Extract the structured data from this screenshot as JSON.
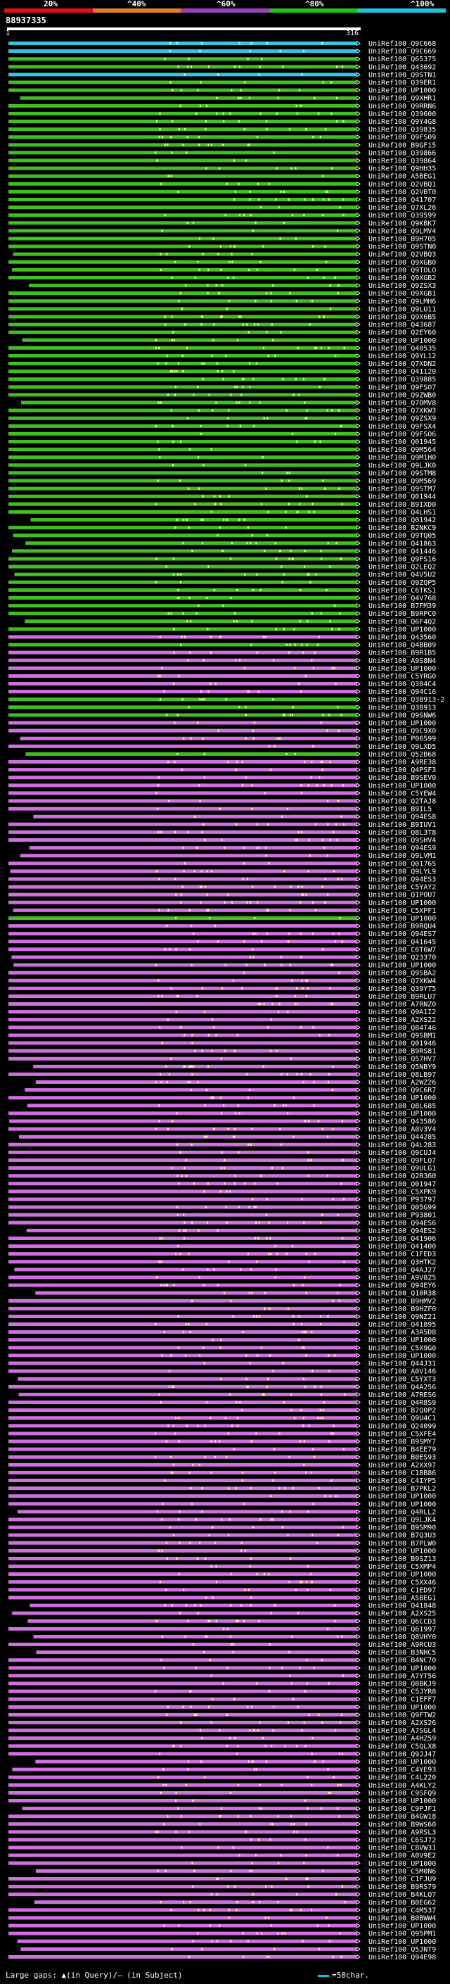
{
  "legend": {
    "ticks": [
      "20%",
      "^40%",
      "^60%",
      "^80%",
      "^100%"
    ],
    "colors": [
      "#e01010",
      "#e08020",
      "#a040c0",
      "#20c020",
      "#20c0e0"
    ]
  },
  "query_id": "88937335",
  "range": {
    "start": "1",
    "end": "316"
  },
  "footer": {
    "text": "Large gaps: ▲(in Query)/– (in Subject)",
    "scale_label": "=50char."
  },
  "colors": {
    "background": "#000000",
    "hit_magenta": "#d070e0",
    "hit_green": "#40c020",
    "hit_cyan": "#30c8e0",
    "gap_mark": "#ffffa0",
    "arrow": "#ffffff"
  },
  "hits": [
    {
      "label": "UniRef100_Q9C668",
      "pid": "cyan"
    },
    {
      "label": "UniRef100_Q9C669",
      "pid": "cyan"
    },
    {
      "label": "UniRef100_Q65375",
      "pid": "green"
    },
    {
      "label": "UniRef100_Q43692",
      "pid": "green"
    },
    {
      "label": "UniRef100_Q9STN1",
      "pid": "cyan"
    },
    {
      "label": "UniRef100_Q39ER1",
      "pid": "green"
    },
    {
      "label": "UniRef100_UP1000",
      "pid": "green"
    },
    {
      "label": "UniRef100_Q9XHR1",
      "pid": "green"
    },
    {
      "label": "UniRef100_Q9RRN6",
      "pid": "green"
    },
    {
      "label": "UniRef100_Q39600",
      "pid": "green"
    },
    {
      "label": "UniRef100_Q9Y4G8",
      "pid": "green"
    },
    {
      "label": "UniRef100_Q39835",
      "pid": "green"
    },
    {
      "label": "UniRef100_Q9FS09",
      "pid": "green"
    },
    {
      "label": "UniRef100_B9GF15",
      "pid": "green"
    },
    {
      "label": "UniRef100_Q39866",
      "pid": "green"
    },
    {
      "label": "UniRef100_Q39864",
      "pid": "green"
    },
    {
      "label": "UniRef100_Q9HH35",
      "pid": "green"
    },
    {
      "label": "UniRef100_A5BEG1",
      "pid": "green"
    },
    {
      "label": "UniRef100_Q2VBQ1",
      "pid": "green"
    },
    {
      "label": "UniRef100_Q2VBT0",
      "pid": "green"
    },
    {
      "label": "UniRef100_Q41707",
      "pid": "green"
    },
    {
      "label": "UniRef100_Q7XL26",
      "pid": "green"
    },
    {
      "label": "UniRef100_Q39599",
      "pid": "green"
    },
    {
      "label": "UniRef100_Q9KBK7",
      "pid": "green"
    },
    {
      "label": "UniRef100_Q9LMV4",
      "pid": "green"
    },
    {
      "label": "UniRef100_B9H705",
      "pid": "green"
    },
    {
      "label": "UniRef100_Q9STN0",
      "pid": "green"
    },
    {
      "label": "UniRef100_Q2VBQ3",
      "pid": "green"
    },
    {
      "label": "UniRef100_Q9XGB0",
      "pid": "green"
    },
    {
      "label": "UniRef100_Q9TOLO",
      "pid": "green"
    },
    {
      "label": "UniRef100_Q9XGB2",
      "pid": "green"
    },
    {
      "label": "UniRef100_Q9ZSX3",
      "pid": "green"
    },
    {
      "label": "UniRef100_Q9XGB1",
      "pid": "green"
    },
    {
      "label": "UniRef100_Q9LMH6",
      "pid": "green"
    },
    {
      "label": "UniRef100_Q9LU11",
      "pid": "green"
    },
    {
      "label": "UniRef100_Q9X6B5",
      "pid": "green"
    },
    {
      "label": "UniRef100_Q43687",
      "pid": "green"
    },
    {
      "label": "UniRef100_Q2EY60",
      "pid": "green"
    },
    {
      "label": "UniRef100_UP1000",
      "pid": "green"
    },
    {
      "label": "UniRef100_Q40535",
      "pid": "green"
    },
    {
      "label": "UniRef100_Q9YL12",
      "pid": "green"
    },
    {
      "label": "UniRef100_Q7XDN2",
      "pid": "green"
    },
    {
      "label": "UniRef100_Q41120",
      "pid": "green"
    },
    {
      "label": "UniRef100_Q39885",
      "pid": "green"
    },
    {
      "label": "UniRef100_Q9FSO7",
      "pid": "green"
    },
    {
      "label": "UniRef100_Q9ZWB0",
      "pid": "green"
    },
    {
      "label": "UniRef100_Q7DMV8",
      "pid": "green"
    },
    {
      "label": "UniRef100_Q7XKW3",
      "pid": "green"
    },
    {
      "label": "UniRef100_Q9ZSX9",
      "pid": "green"
    },
    {
      "label": "UniRef100_Q9FSX4",
      "pid": "green"
    },
    {
      "label": "UniRef100_Q9FSO6",
      "pid": "green"
    },
    {
      "label": "UniRef100_Q01945",
      "pid": "green"
    },
    {
      "label": "UniRef100_Q9M564",
      "pid": "green"
    },
    {
      "label": "UniRef100_Q9M1H0",
      "pid": "green"
    },
    {
      "label": "UniRef100_Q9LJK0",
      "pid": "green"
    },
    {
      "label": "UniRef100_Q9STM8",
      "pid": "green"
    },
    {
      "label": "UniRef100_Q9M569",
      "pid": "green"
    },
    {
      "label": "UniRef100_Q9STM7",
      "pid": "green"
    },
    {
      "label": "UniRef100_Q01944",
      "pid": "green"
    },
    {
      "label": "UniRef100_B9IXD0",
      "pid": "green"
    },
    {
      "label": "UniRef100_Q4LHS1",
      "pid": "green"
    },
    {
      "label": "UniRef100_Q01942",
      "pid": "green"
    },
    {
      "label": "UniRef100_B2NKC9",
      "pid": "green"
    },
    {
      "label": "UniRef100_Q9TQ05",
      "pid": "green"
    },
    {
      "label": "UniRef100_Q41863",
      "pid": "green"
    },
    {
      "label": "UniRef100_Q41446",
      "pid": "green"
    },
    {
      "label": "UniRef100_Q9FS16",
      "pid": "green"
    },
    {
      "label": "UniRef100_Q2LEQ2",
      "pid": "green"
    },
    {
      "label": "UniRef100_Q4V5U2",
      "pid": "green"
    },
    {
      "label": "UniRef100_Q9ZQP5",
      "pid": "green"
    },
    {
      "label": "UniRef100_C6TKS1",
      "pid": "green"
    },
    {
      "label": "UniRef100_Q4V768",
      "pid": "green"
    },
    {
      "label": "UniRef100_B7FM39",
      "pid": "green"
    },
    {
      "label": "UniRef100_B9RPC0",
      "pid": "green"
    },
    {
      "label": "UniRef100_Q6F4Q2",
      "pid": "green"
    },
    {
      "label": "UniRef100_UP1000",
      "pid": "green"
    },
    {
      "label": "UniRef100_Q43560",
      "pid": "magenta"
    },
    {
      "label": "UniRef100_Q4BB09",
      "pid": "green"
    },
    {
      "label": "UniRef100_B9R1B5",
      "pid": "magenta"
    },
    {
      "label": "UniRef100_A9S8N4",
      "pid": "magenta"
    },
    {
      "label": "UniRef100_UP1000",
      "pid": "magenta"
    },
    {
      "label": "UniRef100_C5YRG0",
      "pid": "magenta"
    },
    {
      "label": "UniRef100_Q304C4",
      "pid": "magenta"
    },
    {
      "label": "UniRef100_Q94C16",
      "pid": "magenta"
    },
    {
      "label": "UniRef100_Q38913-2",
      "pid": "green"
    },
    {
      "label": "UniRef100_Q38913",
      "pid": "green"
    },
    {
      "label": "UniRef100_Q9SNW6",
      "pid": "green"
    },
    {
      "label": "UniRef100_UP1000",
      "pid": "magenta"
    },
    {
      "label": "UniRef100_Q9C9X0",
      "pid": "magenta"
    },
    {
      "label": "UniRef100_P06599",
      "pid": "magenta"
    },
    {
      "label": "UniRef100_Q9LXD5",
      "pid": "magenta"
    },
    {
      "label": "UniRef100_Q52B68",
      "pid": "green"
    },
    {
      "label": "UniRef100_A9RE38",
      "pid": "magenta"
    },
    {
      "label": "UniRef100_Q4PSF3",
      "pid": "magenta"
    },
    {
      "label": "UniRef100_B9SEV0",
      "pid": "magenta"
    },
    {
      "label": "UniRef100_UP1000",
      "pid": "magenta"
    },
    {
      "label": "UniRef100_C5YEW4",
      "pid": "magenta"
    },
    {
      "label": "UniRef100_Q2TAJ8",
      "pid": "magenta"
    },
    {
      "label": "UniRef100_B9IL5",
      "pid": "magenta"
    },
    {
      "label": "UniRef100_Q94ES8",
      "pid": "magenta"
    },
    {
      "label": "UniRef100_B9IUV1",
      "pid": "magenta"
    },
    {
      "label": "UniRef100_Q8L3T8",
      "pid": "magenta"
    },
    {
      "label": "UniRef100_Q9SHV4",
      "pid": "magenta"
    },
    {
      "label": "UniRef100_Q94ES9",
      "pid": "magenta"
    },
    {
      "label": "UniRef100_Q9LVM1",
      "pid": "magenta"
    },
    {
      "label": "UniRef100_Q01765",
      "pid": "magenta"
    },
    {
      "label": "UniRef100_Q9LYL9",
      "pid": "magenta"
    },
    {
      "label": "UniRef100_Q94ES3",
      "pid": "magenta"
    },
    {
      "label": "UniRef100_C5YAY2",
      "pid": "magenta"
    },
    {
      "label": "UniRef100_Q1POU7",
      "pid": "magenta"
    },
    {
      "label": "UniRef100_UP1000",
      "pid": "magenta"
    },
    {
      "label": "UniRef100_C5XPF1",
      "pid": "magenta"
    },
    {
      "label": "UniRef100_UP1000",
      "pid": "green"
    },
    {
      "label": "UniRef100_B9RQU4",
      "pid": "magenta"
    },
    {
      "label": "UniRef100_Q94ES7",
      "pid": "magenta"
    },
    {
      "label": "UniRef100_Q41645",
      "pid": "magenta"
    },
    {
      "label": "UniRef100_C6T6W7",
      "pid": "magenta"
    },
    {
      "label": "UniRef100_Q23370",
      "pid": "magenta"
    },
    {
      "label": "UniRef100_UP1000",
      "pid": "magenta"
    },
    {
      "label": "UniRef100_Q9SBA2",
      "pid": "magenta"
    },
    {
      "label": "UniRef100_Q7XKW4",
      "pid": "magenta"
    },
    {
      "label": "UniRef100_Q39YT5",
      "pid": "magenta"
    },
    {
      "label": "UniRef100_B9RLU7",
      "pid": "magenta"
    },
    {
      "label": "UniRef100_A7RNZ0",
      "pid": "magenta"
    },
    {
      "label": "UniRef100_Q9A1I2",
      "pid": "magenta"
    },
    {
      "label": "UniRef100_A2XS22",
      "pid": "magenta"
    },
    {
      "label": "UniRef100_Q84T46",
      "pid": "magenta"
    },
    {
      "label": "UniRef100_Q9SBM1",
      "pid": "magenta"
    },
    {
      "label": "UniRef100_Q01946",
      "pid": "magenta"
    },
    {
      "label": "UniRef100_B9RS81",
      "pid": "magenta"
    },
    {
      "label": "UniRef100_Q57HV7",
      "pid": "magenta"
    },
    {
      "label": "UniRef100_Q5NBY9",
      "pid": "magenta"
    },
    {
      "label": "UniRef100_Q8LB97",
      "pid": "magenta"
    },
    {
      "label": "UniRef100_A2WZ26",
      "pid": "magenta"
    },
    {
      "label": "UniRef100_Q9C6R7",
      "pid": "magenta"
    },
    {
      "label": "UniRef100_UP1000",
      "pid": "magenta"
    },
    {
      "label": "UniRef100_Q8L685",
      "pid": "magenta"
    },
    {
      "label": "UniRef100_UP1000",
      "pid": "magenta"
    },
    {
      "label": "UniRef100_Q43586",
      "pid": "magenta"
    },
    {
      "label": "UniRef100_A0V3V4",
      "pid": "magenta"
    },
    {
      "label": "UniRef100_Q44285",
      "pid": "magenta"
    },
    {
      "label": "UniRef100_Q4L283",
      "pid": "magenta"
    },
    {
      "label": "UniRef100_Q9CUJ4",
      "pid": "magenta"
    },
    {
      "label": "UniRef100_Q9FLQ7",
      "pid": "magenta"
    },
    {
      "label": "UniRef100_Q9ULG1",
      "pid": "magenta"
    },
    {
      "label": "UniRef100_Q2R360",
      "pid": "magenta"
    },
    {
      "label": "UniRef100_Q01947",
      "pid": "magenta"
    },
    {
      "label": "UniRef100_C5XPK9",
      "pid": "magenta"
    },
    {
      "label": "UniRef100_P93797",
      "pid": "magenta"
    },
    {
      "label": "UniRef100_Q05G99",
      "pid": "magenta"
    },
    {
      "label": "UniRef100_P93801",
      "pid": "magenta"
    },
    {
      "label": "UniRef100_Q94ES6",
      "pid": "magenta"
    },
    {
      "label": "UniRef100_Q94ES2",
      "pid": "magenta"
    },
    {
      "label": "UniRef100_Q41906",
      "pid": "magenta"
    },
    {
      "label": "UniRef100_Q41400",
      "pid": "magenta"
    },
    {
      "label": "UniRef100_C1FED3",
      "pid": "magenta"
    },
    {
      "label": "UniRef100_Q3HTK2",
      "pid": "magenta"
    },
    {
      "label": "UniRef100_Q4AJ27",
      "pid": "magenta"
    },
    {
      "label": "UniRef100_A9V8Z5",
      "pid": "magenta"
    },
    {
      "label": "UniRef100_Q94EY6",
      "pid": "magenta"
    },
    {
      "label": "UniRef100_Q10R38",
      "pid": "magenta"
    },
    {
      "label": "UniRef100_B9HMV2",
      "pid": "magenta"
    },
    {
      "label": "UniRef100_B9HZF0",
      "pid": "magenta"
    },
    {
      "label": "UniRef100_Q9NZ21",
      "pid": "magenta"
    },
    {
      "label": "UniRef100_Q41895",
      "pid": "magenta"
    },
    {
      "label": "UniRef100_A3A5D8",
      "pid": "magenta"
    },
    {
      "label": "UniRef100_UP1000",
      "pid": "magenta"
    },
    {
      "label": "UniRef100_C5X9G0",
      "pid": "magenta"
    },
    {
      "label": "UniRef100_UP1000",
      "pid": "magenta"
    },
    {
      "label": "UniRef100_Q44J31",
      "pid": "magenta"
    },
    {
      "label": "UniRef100_A0V146",
      "pid": "magenta"
    },
    {
      "label": "UniRef100_C5YXT3",
      "pid": "magenta"
    },
    {
      "label": "UniRef100_Q4A256",
      "pid": "magenta"
    },
    {
      "label": "UniRef100_A7RES6",
      "pid": "magenta"
    },
    {
      "label": "UniRef100_Q4R8S9",
      "pid": "magenta"
    },
    {
      "label": "UniRef100_B7Q0P2",
      "pid": "magenta"
    },
    {
      "label": "UniRef100_Q9U4C1",
      "pid": "magenta"
    },
    {
      "label": "UniRef100_Q24099",
      "pid": "magenta"
    },
    {
      "label": "UniRef100_C5XFE4",
      "pid": "magenta"
    },
    {
      "label": "UniRef100_B9SMY7",
      "pid": "magenta"
    },
    {
      "label": "UniRef100_B4EE79",
      "pid": "magenta"
    },
    {
      "label": "UniRef100_B0ES93",
      "pid": "magenta"
    },
    {
      "label": "UniRef100_A2XX97",
      "pid": "magenta"
    },
    {
      "label": "UniRef100_C1BB86",
      "pid": "magenta"
    },
    {
      "label": "UniRef100_C4IYP5",
      "pid": "magenta"
    },
    {
      "label": "UniRef100_B7PKL2",
      "pid": "magenta"
    },
    {
      "label": "UniRef100_UP1000",
      "pid": "magenta"
    },
    {
      "label": "UniRef100_UP1000",
      "pid": "magenta"
    },
    {
      "label": "UniRef100_Q4RLL2",
      "pid": "magenta"
    },
    {
      "label": "UniRef100_Q9LJK4",
      "pid": "magenta"
    },
    {
      "label": "UniRef100_B9SM90",
      "pid": "magenta"
    },
    {
      "label": "UniRef100_B7Q3U3",
      "pid": "magenta"
    },
    {
      "label": "UniRef100_B7PLW0",
      "pid": "magenta"
    },
    {
      "label": "UniRef100_UP1000",
      "pid": "magenta"
    },
    {
      "label": "UniRef100_B9SZ13",
      "pid": "magenta"
    },
    {
      "label": "UniRef100_C5XMP4",
      "pid": "magenta"
    },
    {
      "label": "UniRef100_UP1000",
      "pid": "magenta"
    },
    {
      "label": "UniRef100_C5XX46",
      "pid": "magenta"
    },
    {
      "label": "UniRef100_C1ED97",
      "pid": "magenta"
    },
    {
      "label": "UniRef100_A5BEG1",
      "pid": "magenta"
    },
    {
      "label": "UniRef100_Q41848",
      "pid": "magenta"
    },
    {
      "label": "UniRef100_A2XS25",
      "pid": "magenta"
    },
    {
      "label": "UniRef100_Q6CCD3",
      "pid": "magenta"
    },
    {
      "label": "UniRef100_Q61997",
      "pid": "magenta"
    },
    {
      "label": "UniRef100_Q8VHY0",
      "pid": "magenta"
    },
    {
      "label": "UniRef100_A9RCU3",
      "pid": "magenta"
    },
    {
      "label": "UniRef100_B3NHC5",
      "pid": "magenta"
    },
    {
      "label": "UniRef100_B4NC70",
      "pid": "magenta"
    },
    {
      "label": "UniRef100_UP1000",
      "pid": "magenta"
    },
    {
      "label": "UniRef100_A7YT56",
      "pid": "magenta"
    },
    {
      "label": "UniRef100_Q8BKJ9",
      "pid": "magenta"
    },
    {
      "label": "UniRef100_C5JYR8",
      "pid": "magenta"
    },
    {
      "label": "UniRef100_C1EFF7",
      "pid": "magenta"
    },
    {
      "label": "UniRef100_UP1000",
      "pid": "magenta"
    },
    {
      "label": "UniRef100_Q9FTW2",
      "pid": "magenta"
    },
    {
      "label": "UniRef100_A2XS26",
      "pid": "magenta"
    },
    {
      "label": "UniRef100_A7SGL4",
      "pid": "magenta"
    },
    {
      "label": "UniRef100_A4HZ59",
      "pid": "magenta"
    },
    {
      "label": "UniRef100_C5QLX8",
      "pid": "magenta"
    },
    {
      "label": "UniRef100_Q9JJ47",
      "pid": "magenta"
    },
    {
      "label": "UniRef100_UP1000",
      "pid": "magenta"
    },
    {
      "label": "UniRef100_C4YE93",
      "pid": "magenta"
    },
    {
      "label": "UniRef100_C4L220",
      "pid": "magenta"
    },
    {
      "label": "UniRef100_A4KLY2",
      "pid": "magenta"
    },
    {
      "label": "UniRef100_C9SFQ9",
      "pid": "magenta"
    },
    {
      "label": "UniRef100_UP1000",
      "pid": "magenta"
    },
    {
      "label": "UniRef100_C9PJF1",
      "pid": "magenta"
    },
    {
      "label": "UniRef100_B4GW18",
      "pid": "magenta"
    },
    {
      "label": "UniRef100_B9WS60",
      "pid": "magenta"
    },
    {
      "label": "UniRef100_A9RSL3",
      "pid": "magenta"
    },
    {
      "label": "UniRef100_C6SJ72",
      "pid": "magenta"
    },
    {
      "label": "UniRef100_C8VW31",
      "pid": "magenta"
    },
    {
      "label": "UniRef100_A0V9E2",
      "pid": "magenta"
    },
    {
      "label": "UniRef100_UP1000",
      "pid": "magenta"
    },
    {
      "label": "UniRef100_C5M0N6",
      "pid": "magenta"
    },
    {
      "label": "UniRef100_C1FJU9",
      "pid": "magenta"
    },
    {
      "label": "UniRef100_B9RS79",
      "pid": "magenta"
    },
    {
      "label": "UniRef100_B4KLQ7",
      "pid": "magenta"
    },
    {
      "label": "UniRef100_B0EG62",
      "pid": "magenta"
    },
    {
      "label": "UniRef100_C4M537",
      "pid": "magenta"
    },
    {
      "label": "UniRef100_B0BWW4",
      "pid": "magenta"
    },
    {
      "label": "UniRef100_UP1000",
      "pid": "magenta"
    },
    {
      "label": "UniRef100_Q95PM1",
      "pid": "magenta"
    },
    {
      "label": "UniRef100_UP1000",
      "pid": "magenta"
    },
    {
      "label": "UniRef100_Q5JNT9",
      "pid": "magenta"
    },
    {
      "label": "UniRef100_Q94E98",
      "pid": "magenta"
    }
  ]
}
